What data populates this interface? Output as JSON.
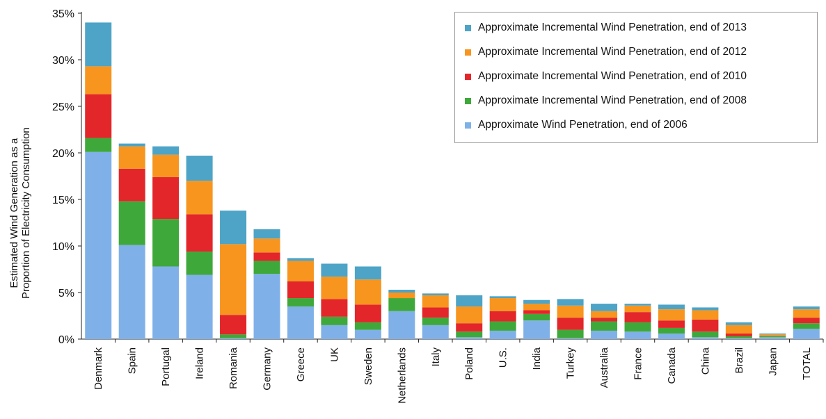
{
  "chart_data": {
    "type": "bar",
    "stacked": true,
    "ylabel": [
      "Estimated Wind Generation as a",
      "Proportion of Electricity Consumption"
    ],
    "xlabel": "",
    "ylim": [
      0,
      35
    ],
    "yticks": [
      "0%",
      "5%",
      "10%",
      "15%",
      "20%",
      "25%",
      "30%",
      "35%"
    ],
    "categories": [
      "Denmark",
      "Spain",
      "Portugal",
      "Ireland",
      "Romania",
      "Germany",
      "Greece",
      "UK",
      "Sweden",
      "Netherlands",
      "Italy",
      "Poland",
      "U.S.",
      "India",
      "Turkey",
      "Australia",
      "France",
      "Canada",
      "China",
      "Brazil",
      "Japan",
      "TOTAL"
    ],
    "series": [
      {
        "name": "Approximate Wind Penetration, end of 2006",
        "color": "#7fb1e8",
        "values": [
          20.1,
          10.1,
          7.8,
          6.9,
          0.1,
          7.0,
          3.5,
          1.5,
          1.0,
          3.0,
          1.5,
          0.2,
          0.9,
          2.0,
          0.1,
          0.9,
          0.8,
          0.6,
          0.2,
          0.1,
          0.2,
          1.1
        ]
      },
      {
        "name": "Approximate Incremental Wind Penetration, end of 2008",
        "color": "#3fa83a",
        "values": [
          1.5,
          4.7,
          5.1,
          2.5,
          0.4,
          1.4,
          0.9,
          0.9,
          0.8,
          1.4,
          0.8,
          0.6,
          1.0,
          0.7,
          0.9,
          1.0,
          1.0,
          0.6,
          0.6,
          0.2,
          0.1,
          0.6
        ]
      },
      {
        "name": "Approximate Incremental Wind Penetration, end of 2010",
        "color": "#e3262a",
        "values": [
          4.7,
          3.5,
          4.5,
          4.0,
          2.1,
          0.9,
          1.8,
          1.9,
          1.9,
          0.0,
          1.1,
          0.9,
          1.1,
          0.4,
          1.3,
          0.4,
          1.1,
          0.8,
          1.3,
          0.3,
          0.0,
          0.6
        ]
      },
      {
        "name": "Approximate Incremental Wind Penetration, end of 2012",
        "color": "#f7951e",
        "values": [
          3.0,
          2.4,
          2.4,
          3.6,
          7.6,
          1.5,
          2.2,
          2.4,
          2.7,
          0.6,
          1.3,
          1.8,
          1.4,
          0.7,
          1.3,
          0.7,
          0.7,
          1.2,
          1.0,
          0.9,
          0.2,
          0.9
        ]
      },
      {
        "name": "Approximate Incremental Wind Penetration, end of 2013",
        "color": "#4da4c6",
        "values": [
          4.7,
          0.3,
          0.9,
          2.7,
          3.6,
          1.0,
          0.3,
          1.4,
          1.4,
          0.3,
          0.2,
          1.2,
          0.2,
          0.4,
          0.7,
          0.8,
          0.2,
          0.5,
          0.3,
          0.3,
          0.1,
          0.3
        ]
      }
    ],
    "legend": {
      "position": "top-right",
      "order": [
        4,
        3,
        2,
        1,
        0
      ]
    },
    "grid": false
  }
}
